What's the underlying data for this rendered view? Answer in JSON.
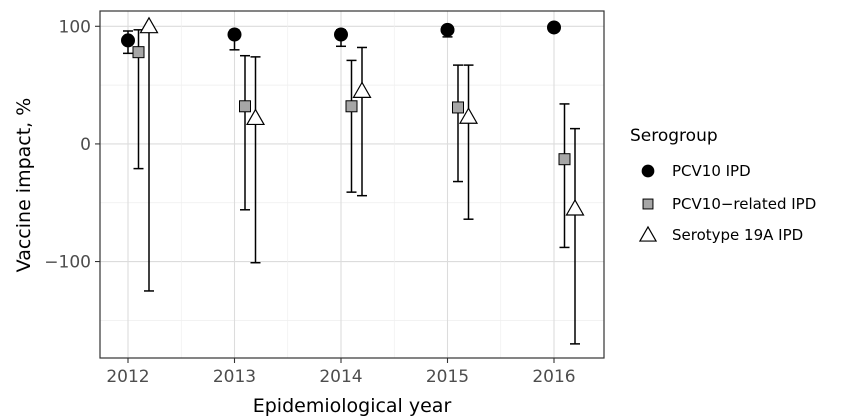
{
  "chart_data": {
    "type": "scatter",
    "xlabel": "Epidemiological year",
    "ylabel": "Vaccine impact, %",
    "categories": [
      "2012",
      "2013",
      "2014",
      "2015",
      "2016"
    ],
    "ylim": [
      -182,
      113
    ],
    "yticks": [
      100,
      0,
      -100
    ],
    "ytick_labels": [
      "100",
      "0",
      "−100"
    ],
    "grid": true,
    "legend": {
      "title": "Serogroup",
      "position": "right"
    },
    "series": [
      {
        "name": "PCV10 IPD",
        "marker": "circle",
        "fill": "#000000",
        "values": [
          88,
          93,
          93,
          97,
          99
        ],
        "lower": [
          77,
          80,
          83,
          91,
          96
        ],
        "upper": [
          96,
          97,
          97,
          99,
          100
        ]
      },
      {
        "name": "PCV10−related IPD",
        "marker": "square",
        "fill": "#a6a6a6",
        "values": [
          78,
          32,
          32,
          31,
          -13
        ],
        "lower": [
          -21,
          -56,
          -41,
          -32,
          -88
        ],
        "upper": [
          97,
          75,
          71,
          67,
          34
        ]
      },
      {
        "name": "Serotype 19A IPD",
        "marker": "triangle",
        "fill": "#ffffff",
        "values": [
          100,
          22,
          45,
          23,
          -55
        ],
        "lower": [
          -125,
          -101,
          -44,
          -64,
          -170
        ],
        "upper": [
          100,
          74,
          82,
          67,
          13
        ]
      }
    ]
  }
}
